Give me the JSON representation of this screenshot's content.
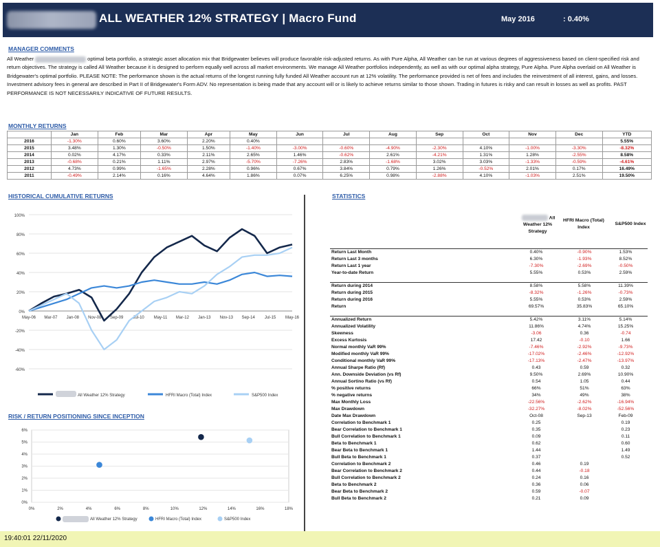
{
  "header": {
    "title": "ALL WEATHER 12% STRATEGY | Macro Fund",
    "month": "May 2016",
    "month_value": ":   0.40%"
  },
  "manager_comments": {
    "heading": "MANAGER COMMENTS",
    "text_start": "All Weather",
    "text_rest": "optimal beta portfolio, a strategic asset allocation mix that Bridgewater believes will produce favorable risk-adjusted returns. As with Pure Alpha, All Weather can be run at various degrees of aggressiveness based on client-specified risk and return objectives. The strategy is called All Weather because it is designed to perform equally well across all market environments. We manage All Weather portfolios independently, as well as with our optimal alpha strategy, Pure Alpha. Pure Alpha overlaid on All Weather is Bridgewater's optimal portfolio. PLEASE NOTE: The performance shown is the actual returns of the longest running fully funded All Weather account run at 12% volatility.  The performance provided is net of fees and includes the reinvestment of all interest, gains, and losses.  Investment advisory fees in general are described in Part II of Bridgewater's Form ADV.  No representation is being made that any account will or is likely to achieve returns similar to those shown.  Trading in futures is risky and can result in losses as well as profits.  PAST PERFORMANCE IS NOT NECESSARILY INDICATIVE OF FUTURE RESULTS."
  },
  "monthly_returns": {
    "heading": "MONTHLY RETURNS",
    "columns": [
      "",
      "Jan",
      "Feb",
      "Mar",
      "Apr",
      "May",
      "Jun",
      "Jul",
      "Aug",
      "Sep",
      "Oct",
      "Nov",
      "Dec",
      "YTD"
    ],
    "rows": [
      [
        "2016",
        "-1.30%",
        "0.60%",
        "3.60%",
        "2.20%",
        "0.40%",
        "",
        "",
        "",
        "",
        "",
        "",
        "",
        "5.55%"
      ],
      [
        "2015",
        "3.48%",
        "1.30%",
        "-0.50%",
        "1.50%",
        "-1.40%",
        "-3.00%",
        "-0.60%",
        "-4.90%",
        "-2.30%",
        "4.10%",
        "-1.00%",
        "-3.30%",
        "-8.32%"
      ],
      [
        "2014",
        "0.02%",
        "4.17%",
        "0.33%",
        "2.11%",
        "2.65%",
        "1.46%",
        "-0.62%",
        "2.61%",
        "-4.21%",
        "1.31%",
        "1.28%",
        "-2.55%",
        "8.58%"
      ],
      [
        "2013",
        "-0.68%",
        "0.21%",
        "1.11%",
        "2.97%",
        "-5.70%",
        "-7.26%",
        "2.83%",
        "-1.68%",
        "3.02%",
        "3.03%",
        "-1.33%",
        "-0.59%",
        "-4.61%"
      ],
      [
        "2012",
        "4.73%",
        "0.99%",
        "-1.65%",
        "2.28%",
        "0.96%",
        "0.67%",
        "3.84%",
        "0.79%",
        "1.26%",
        "-0.52%",
        "2.01%",
        "0.17%",
        "16.49%"
      ],
      [
        "2011",
        "-0.49%",
        "2.14%",
        "0.16%",
        "4.64%",
        "1.86%",
        "0.07%",
        "6.25%",
        "0.98%",
        "-2.88%",
        "4.10%",
        "-1.03%",
        "2.51%",
        "19.50%"
      ]
    ]
  },
  "cumulative": {
    "heading": "HISTORICAL CUMULATIVE RETURNS",
    "legend": [
      "All Weather 12% Strategy",
      "HFRI Macro (Total) Index",
      "S&P500 Index"
    ],
    "colors": [
      "#14284b",
      "#3b87d8",
      "#a8d0f4"
    ]
  },
  "risk_return": {
    "heading": "RISK / RETURN POSITIONING SINCE INCEPTION",
    "legend": [
      "All Weather 12% Strategy",
      "HFRI Macro (Total) Index",
      "S&P500 Index"
    ]
  },
  "chart_data": [
    {
      "type": "line",
      "x_ticks": [
        "May-06",
        "Mar-07",
        "Jan-08",
        "Nov-08",
        "Sep-09",
        "Jul-10",
        "May-11",
        "Mar-12",
        "Jan-13",
        "Nov-13",
        "Sep-14",
        "Jul-15",
        "May-16"
      ],
      "ylim": [
        -60,
        100
      ],
      "y_ticks": [
        "100%",
        "80%",
        "60%",
        "40%",
        "20%",
        "0%",
        "-20%",
        "-40%",
        "-60%"
      ],
      "series": [
        {
          "name": "All Weather 12% Strategy",
          "values": [
            0,
            8,
            15,
            18,
            22,
            14,
            -10,
            2,
            18,
            40,
            56,
            66,
            72,
            78,
            68,
            62,
            76,
            85,
            78,
            60,
            66,
            69
          ]
        },
        {
          "name": "HFRI Macro (Total) Index",
          "values": [
            0,
            4,
            8,
            12,
            18,
            24,
            26,
            24,
            26,
            30,
            32,
            30,
            28,
            28,
            30,
            28,
            32,
            38,
            40,
            36,
            37,
            36
          ]
        },
        {
          "name": "S&P500 Index",
          "values": [
            0,
            6,
            12,
            18,
            8,
            -20,
            -40,
            -30,
            -10,
            0,
            10,
            14,
            20,
            18,
            26,
            38,
            46,
            56,
            58,
            58,
            60,
            66
          ]
        }
      ]
    },
    {
      "type": "scatter",
      "xlim": [
        0,
        18
      ],
      "ylim": [
        0,
        6
      ],
      "x_ticks": [
        "0%",
        "2%",
        "4%",
        "6%",
        "8%",
        "10%",
        "12%",
        "14%",
        "16%",
        "18%"
      ],
      "y_ticks": [
        "0%",
        "1%",
        "2%",
        "3%",
        "4%",
        "5%",
        "6%"
      ],
      "series": [
        {
          "name": "All Weather 12% Strategy",
          "x": [
            11.86
          ],
          "y": [
            5.42
          ]
        },
        {
          "name": "HFRI Macro (Total) Index",
          "x": [
            4.74
          ],
          "y": [
            3.11
          ]
        },
        {
          "name": "S&P500 Index",
          "x": [
            15.25
          ],
          "y": [
            5.14
          ]
        }
      ]
    }
  ],
  "statistics": {
    "heading": "STATISTICS",
    "col_headers": [
      "All Weather 12% Strategy",
      "HFRI Macro (Total) Index",
      "S&P500 Index"
    ],
    "groups": [
      [
        [
          "Return Last Month",
          "0.40%",
          "-0.90%",
          "1.53%"
        ],
        [
          "Return Last 3 months",
          "6.30%",
          "-1.93%",
          "8.52%"
        ],
        [
          "Return Last 1 year",
          "-7.30%",
          "-2.69%",
          "-0.50%"
        ],
        [
          "Year-to-date Return",
          "5.55%",
          "0.53%",
          "2.59%"
        ]
      ],
      [
        [
          "Return during 2014",
          "8.58%",
          "5.58%",
          "11.39%"
        ],
        [
          "Return during 2015",
          "-8.32%",
          "-1.26%",
          "-0.73%"
        ],
        [
          "Return during 2016",
          "5.55%",
          "0.53%",
          "2.59%"
        ],
        [
          "Return",
          "69.57%",
          "35.83%",
          "65.10%"
        ]
      ],
      [
        [
          "Annualized Return",
          "5.42%",
          "3.11%",
          "5.14%"
        ],
        [
          "Annualized Volatility",
          "11.86%",
          "4.74%",
          "15.25%"
        ],
        [
          "Skewness",
          "-3.06",
          "0.36",
          "-0.74"
        ],
        [
          "Excess Kurtosis",
          "17.42",
          "-0.10",
          "1.66"
        ],
        [
          "Normal monthly VaR 99%",
          "-7.46%",
          "-2.92%",
          "-9.73%"
        ],
        [
          "Modified monthly VaR 99%",
          "-17.02%",
          "-2.46%",
          "-12.92%"
        ],
        [
          "Conditional monthly VaR 99%",
          "-17.13%",
          "-2.47%",
          "-13.97%"
        ],
        [
          "Annual Sharpe Ratio (Rf)",
          "0.43",
          "0.59",
          "0.32"
        ],
        [
          "Ann. Downside Deviation (vs Rf)",
          "9.50%",
          "2.69%",
          "10.90%"
        ],
        [
          "Annual Sortino Ratio (vs Rf)",
          "0.54",
          "1.05",
          "0.44"
        ],
        [
          "% positive returns",
          "66%",
          "51%",
          "63%"
        ],
        [
          "% negative returns",
          "34%",
          "49%",
          "38%"
        ],
        [
          "Max Monthly Loss",
          "-22.56%",
          "-2.62%",
          "-16.94%"
        ],
        [
          "Max Drawdown",
          "-32.27%",
          "-8.02%",
          "-52.56%"
        ],
        [
          "Date Max Drawdown",
          "Oct-08",
          "Sep-13",
          "Feb-09"
        ],
        [
          "Correlation to Benchmark 1",
          "0.25",
          "",
          "0.19"
        ],
        [
          "Bear Correlation to Benchmark 1",
          "0.35",
          "",
          "0.23"
        ],
        [
          "Bull Correlation to Benchmark 1",
          "0.09",
          "",
          "0.11"
        ],
        [
          "Beta to Benchmark 1",
          "0.62",
          "",
          "0.60"
        ],
        [
          "Bear Beta to Benchmark 1",
          "1.44",
          "",
          "1.49"
        ],
        [
          "Bull Beta to Benchmark 1",
          "0.37",
          "",
          "0.52"
        ],
        [
          "Correlation to Benchmark 2",
          "0.46",
          "0.19",
          ""
        ],
        [
          "Bear Correlation to Benchmark 2",
          "0.44",
          "-0.18",
          ""
        ],
        [
          "Bull Correlation to Benchmark 2",
          "0.24",
          "0.16",
          ""
        ],
        [
          "Beta to Benchmark 2",
          "0.36",
          "0.06",
          ""
        ],
        [
          "Bear Beta to Benchmark 2",
          "0.59",
          "-0.07",
          ""
        ],
        [
          "Bull Beta to Benchmark 2",
          "0.21",
          "0.09",
          ""
        ]
      ]
    ]
  },
  "footer": {
    "timestamp": "19:40:01 22/11/2020"
  }
}
